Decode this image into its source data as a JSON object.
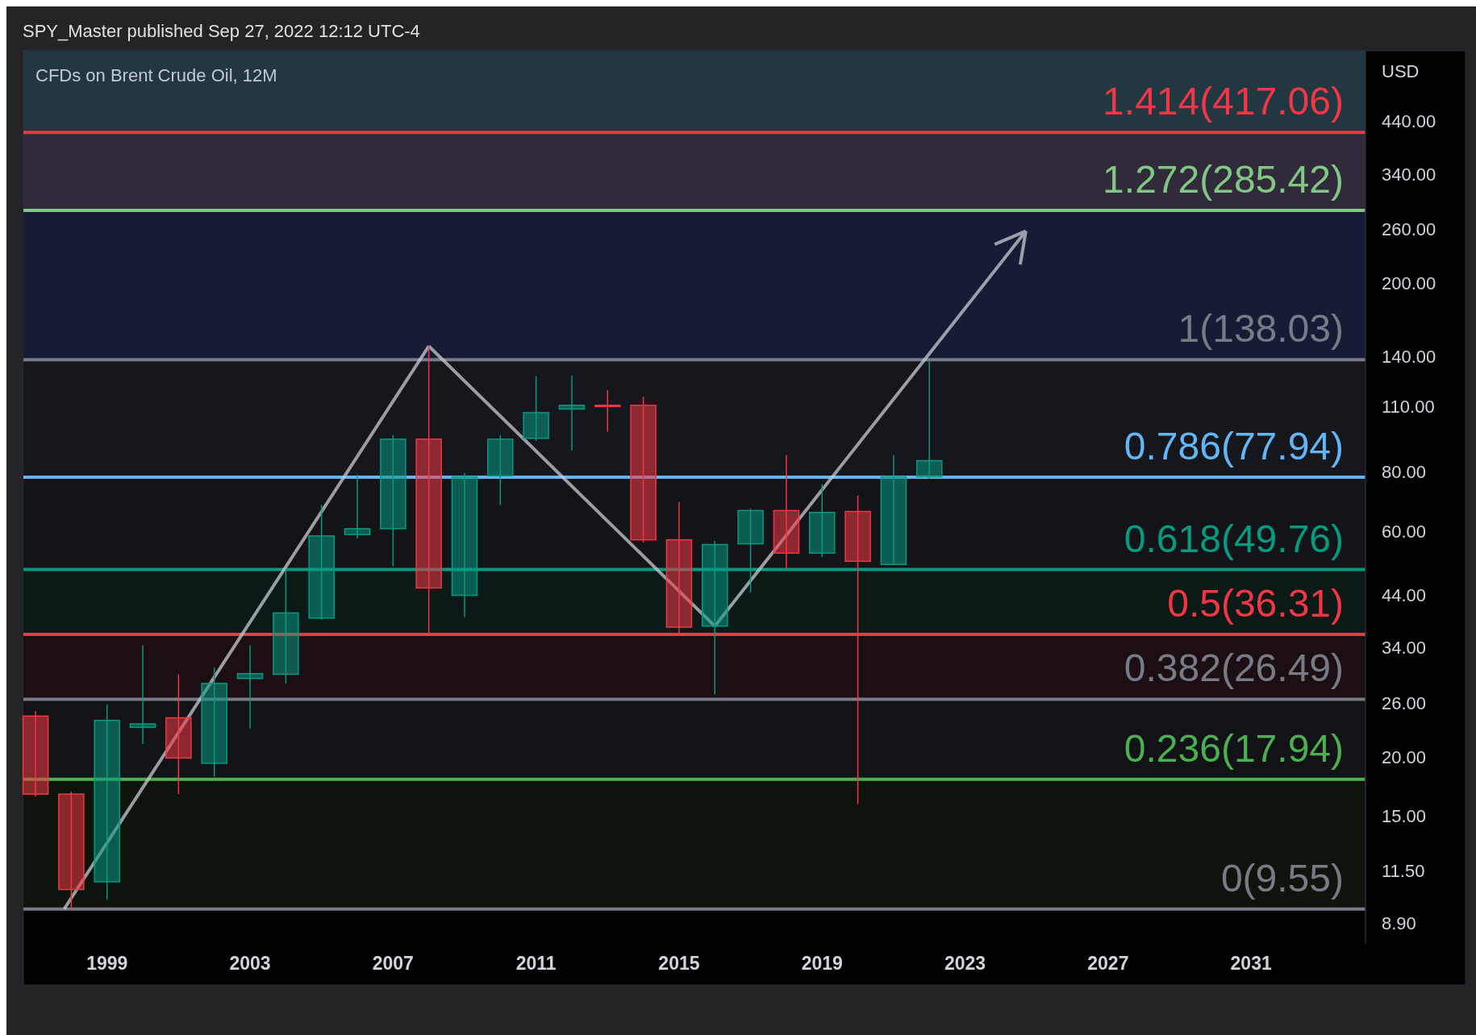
{
  "chart_data": {
    "type": "candlestick",
    "title": "CFDs on Brent Crude Oil, 12M",
    "ylabel": "USD",
    "annotations": [
      "SPY_Master published Sep 27, 2022 12:12 UTC-4"
    ],
    "x": [
      1997,
      1998,
      1999,
      2000,
      2001,
      2002,
      2003,
      2004,
      2005,
      2006,
      2007,
      2008,
      2009,
      2010,
      2011,
      2012,
      2013,
      2014,
      2015,
      2016,
      2017,
      2018,
      2019,
      2020,
      2021,
      2022
    ],
    "ohlc": [
      [
        24.4,
        25,
        16.5,
        16.7
      ],
      [
        16.7,
        16.9,
        9.55,
        10.5
      ],
      [
        10.9,
        25.8,
        10,
        23.9
      ],
      [
        23.1,
        34.4,
        21.3,
        23.5
      ],
      [
        24.2,
        29.9,
        16.7,
        19.9
      ],
      [
        19.4,
        30.9,
        18.2,
        28.6
      ],
      [
        29.3,
        34.4,
        23,
        30
      ],
      [
        29.9,
        49.9,
        28.6,
        40.3
      ],
      [
        39.3,
        68.1,
        39,
        58.6
      ],
      [
        59,
        78.9,
        57.8,
        60.7
      ],
      [
        60.7,
        95.7,
        50.6,
        93.8
      ],
      [
        93.8,
        147.5,
        36.4,
        45.5
      ],
      [
        43.9,
        79.5,
        39.5,
        78.1
      ],
      [
        78.5,
        95.7,
        68.1,
        93.8
      ],
      [
        94.2,
        127.4,
        93,
        106.7
      ],
      [
        108.6,
        127.9,
        88.8,
        110.6
      ],
      [
        110.6,
        119,
        97.3,
        110
      ],
      [
        110.6,
        115.3,
        56.8,
        57.5
      ],
      [
        57.5,
        69.1,
        36.3,
        37.6
      ],
      [
        37.8,
        57.2,
        27.1,
        56.2
      ],
      [
        56.4,
        66.8,
        44.5,
        66.3
      ],
      [
        66.3,
        86.8,
        50.1,
        53.9
      ],
      [
        53.9,
        75.3,
        52.9,
        65.7
      ],
      [
        66,
        71.3,
        15.9,
        51.8
      ],
      [
        51,
        86.8,
        50.9,
        78.1
      ],
      [
        78.1,
        137.8,
        77.4,
        84.5
      ]
    ],
    "colors": [
      "#f23645",
      "#f23645",
      "#089981",
      "#089981",
      "#f23645",
      "#089981",
      "#089981",
      "#089981",
      "#089981",
      "#089981",
      "#089981",
      "#f23645",
      "#089981",
      "#089981",
      "#089981",
      "#089981",
      "#f23645",
      "#f23645",
      "#f23645",
      "#089981",
      "#089981",
      "#f23645",
      "#089981",
      "#f23645",
      "#089981",
      "#089981"
    ],
    "xlim": [
      1996.66,
      2034.2
    ],
    "xticks": [
      1999,
      2003,
      2007,
      2011,
      2015,
      2019,
      2023,
      2027,
      2031
    ],
    "ylim": [
      8.06,
      620
    ],
    "yticks": [
      {
        "value": 8.9,
        "label": "8.90"
      },
      {
        "value": 11.5,
        "label": "11.50"
      },
      {
        "value": 15,
        "label": "15.00"
      },
      {
        "value": 20,
        "label": "20.00"
      },
      {
        "value": 26,
        "label": "26.00"
      },
      {
        "value": 34,
        "label": "34.00"
      },
      {
        "value": 44,
        "label": "44.00"
      },
      {
        "value": 60,
        "label": "60.00"
      },
      {
        "value": 80,
        "label": "80.00"
      },
      {
        "value": 110,
        "label": "110.00"
      },
      {
        "value": 140,
        "label": "140.00"
      },
      {
        "value": 200,
        "label": "200.00"
      },
      {
        "value": 260,
        "label": "260.00"
      },
      {
        "value": 340,
        "label": "340.00"
      },
      {
        "value": 440,
        "label": "440.00"
      }
    ],
    "log": "y",
    "grid": false,
    "bands": [
      {
        "axis": "y",
        "from": 417.06,
        "to": 620,
        "color": "#213843"
      },
      {
        "axis": "y",
        "from": 285.42,
        "to": 417.06,
        "color": "#302a3b"
      },
      {
        "axis": "y",
        "from": 138.03,
        "to": 285.42,
        "color": "#161b36"
      },
      {
        "axis": "y",
        "from": 77.94,
        "to": 138.03,
        "color": "#15171d"
      },
      {
        "axis": "y",
        "from": 49.76,
        "to": 77.94,
        "color": "#121418"
      },
      {
        "axis": "y",
        "from": 36.31,
        "to": 49.76,
        "color": "#0b1917"
      },
      {
        "axis": "y",
        "from": 26.49,
        "to": 36.31,
        "color": "#1c0f14"
      },
      {
        "axis": "y",
        "from": 17.94,
        "to": 26.49,
        "color": "#121316"
      },
      {
        "axis": "y",
        "from": 9.55,
        "to": 17.94,
        "color": "#0c140c"
      }
    ],
    "ref_lines": [
      {
        "axis": "y",
        "value": 417.06,
        "label": "1.414(417.06)",
        "color": "#f23645"
      },
      {
        "axis": "y",
        "value": 285.42,
        "label": "1.272(285.42)",
        "color": "#81c784"
      },
      {
        "axis": "y",
        "value": 138.03,
        "label": "1(138.03)",
        "color": "#787b86"
      },
      {
        "axis": "y",
        "value": 77.94,
        "label": "0.786(77.94)",
        "color": "#64b5f6"
      },
      {
        "axis": "y",
        "value": 49.76,
        "label": "0.618(49.76)",
        "color": "#089981"
      },
      {
        "axis": "y",
        "value": 36.31,
        "label": "0.5(36.31)",
        "color": "#f23645"
      },
      {
        "axis": "y",
        "value": 26.49,
        "label": "0.382(26.49)",
        "color": "#787b86"
      },
      {
        "axis": "y",
        "value": 17.94,
        "label": "0.236(17.94)",
        "color": "#4caf50"
      },
      {
        "axis": "y",
        "value": 9.55,
        "label": "0(9.55)",
        "color": "#787b86"
      }
    ]
  }
}
